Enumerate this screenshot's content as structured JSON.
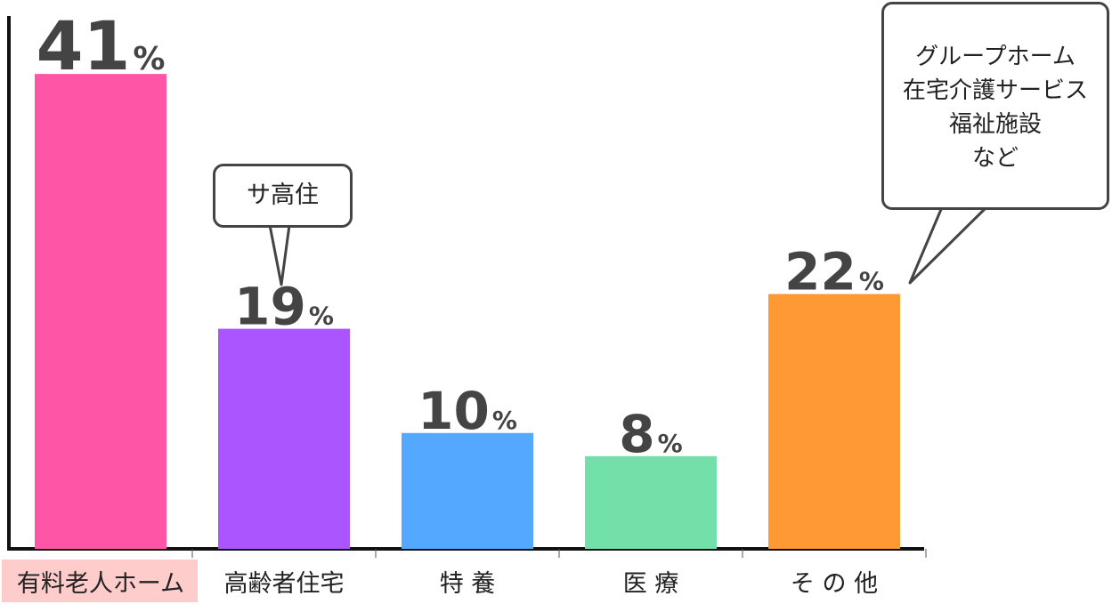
{
  "chart_data": {
    "type": "bar",
    "categories": [
      "有料老人ホーム",
      "高齢者住宅",
      "特 養",
      "医 療",
      "そ の 他"
    ],
    "values": [
      41,
      19,
      10,
      8,
      22
    ],
    "unit": "%",
    "colors": [
      "#ff55a6",
      "#aa55ff",
      "#55a8ff",
      "#72e0a8",
      "#ff9933"
    ],
    "highlight_category_bg": "#ffcccc",
    "ylim": [
      0,
      46
    ],
    "grid": false,
    "annotations": [
      {
        "category": "高齢者住宅",
        "lines": [
          "サ高住"
        ]
      },
      {
        "category": "そ の 他",
        "lines": [
          "グループホーム",
          "在宅介護サービス",
          "福祉施設",
          "など"
        ]
      }
    ]
  }
}
